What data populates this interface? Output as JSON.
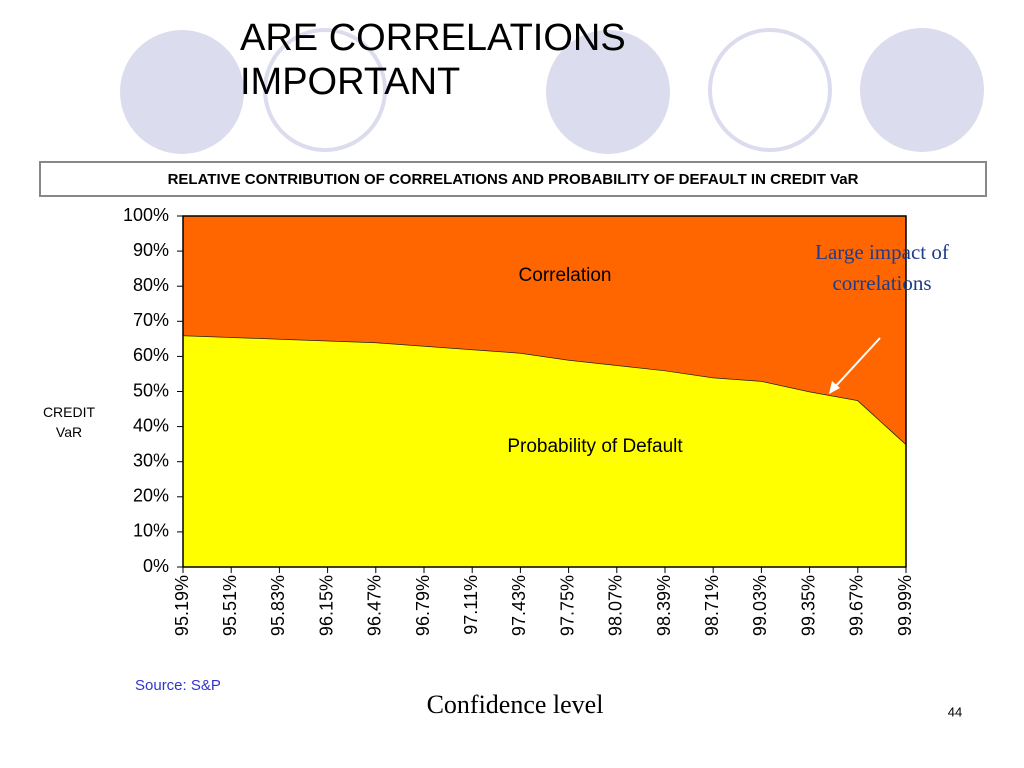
{
  "chart_data": {
    "type": "area",
    "stacked": true,
    "title": "ARE CORRELATIONS IMPORTANT",
    "subtitle": "RELATIVE CONTRIBUTION OF CORRELATIONS AND PROBABILITY OF DEFAULT IN CREDIT VaR",
    "y_label": "CREDIT VaR",
    "x_label": "Confidence level",
    "annotation": "Large impact of correlations",
    "source": "Source: S&P",
    "page_number": "44",
    "categories": [
      "95.19%",
      "95.51%",
      "95.83%",
      "96.15%",
      "96.47%",
      "96.79%",
      "97.11%",
      "97.43%",
      "97.75%",
      "98.07%",
      "98.39%",
      "98.71%",
      "99.03%",
      "99.35%",
      "99.67%",
      "99.99%"
    ],
    "series": [
      {
        "name": "Probability of Default",
        "color": "#ffff00",
        "values": [
          66,
          65.5,
          65,
          64.5,
          64,
          63,
          62,
          61,
          59,
          57.5,
          56,
          54,
          53,
          50,
          47.5,
          35
        ]
      },
      {
        "name": "Correlation",
        "color": "#ff6600",
        "values": [
          34,
          34.5,
          35,
          35.5,
          36,
          37,
          38,
          39,
          41,
          42.5,
          44,
          46,
          47,
          50,
          52.5,
          65
        ]
      }
    ],
    "ylim": [
      0,
      100
    ],
    "yticks": [
      {
        "value": 0,
        "label": "0%"
      },
      {
        "value": 10,
        "label": "10%"
      },
      {
        "value": 20,
        "label": "20%"
      },
      {
        "value": 30,
        "label": "30%"
      },
      {
        "value": 40,
        "label": "40%"
      },
      {
        "value": 50,
        "label": "50%"
      },
      {
        "value": 60,
        "label": "60%"
      },
      {
        "value": 70,
        "label": "70%"
      },
      {
        "value": 80,
        "label": "80%"
      },
      {
        "value": 90,
        "label": "90%"
      },
      {
        "value": 100,
        "label": "100%"
      }
    ]
  }
}
